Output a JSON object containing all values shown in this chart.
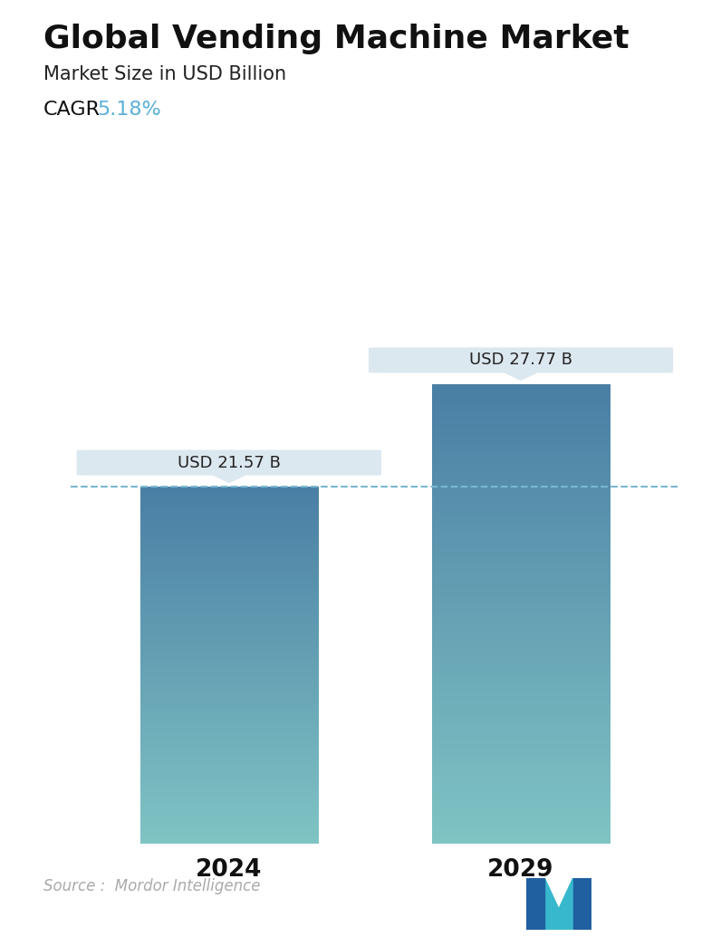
{
  "title": "Global Vending Machine Market",
  "subtitle": "Market Size in USD Billion",
  "cagr_label": "CAGR",
  "cagr_value": "5.18%",
  "cagr_color": "#5aafd6",
  "categories": [
    "2024",
    "2029"
  ],
  "values": [
    21.57,
    27.77
  ],
  "bar_labels": [
    "USD 21.57 B",
    "USD 27.77 B"
  ],
  "bar_top_color": "#4a7fa5",
  "bar_bottom_color": "#80c4c4",
  "dashed_line_color": "#7ab8d0",
  "dashed_line_value": 21.57,
  "background_color": "#ffffff",
  "source_text": "Source :  Mordor Intelligence",
  "source_color": "#aaaaaa",
  "title_fontsize": 26,
  "subtitle_fontsize": 15,
  "cagr_fontsize": 16,
  "ylim_max": 34,
  "bar_width": 0.28,
  "x_positions": [
    0.27,
    0.73
  ],
  "callout_bg": "#dce8f0",
  "callout_fontsize": 13
}
